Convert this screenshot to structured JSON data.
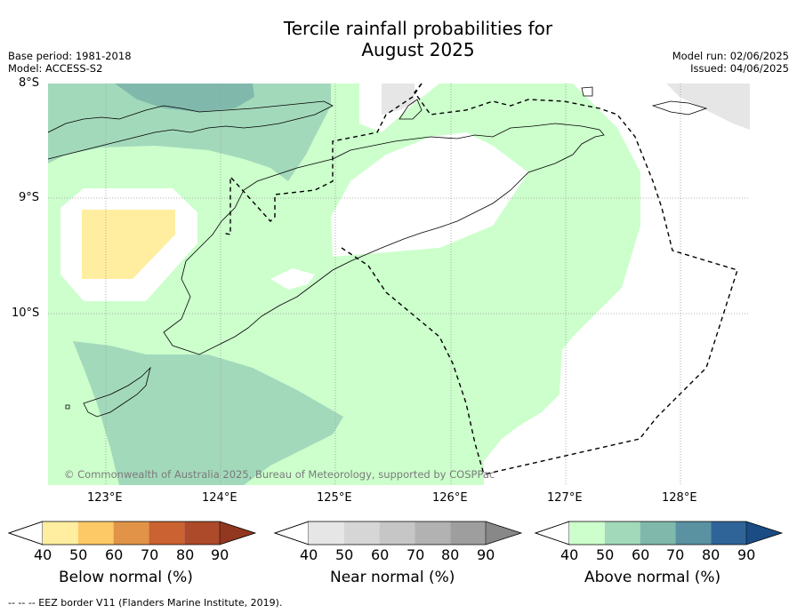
{
  "title_line1": "Tercile rainfall probabilities for",
  "title_line2": "August 2025",
  "meta_left": {
    "base_period": "Base period: 1981-2018",
    "model": "Model: ACCESS-S2"
  },
  "meta_right": {
    "model_run": "Model run: 02/06/2025",
    "issued": "Issued: 04/06/2025"
  },
  "latitude_ticks": [
    "8°S",
    "9°S",
    "10°S"
  ],
  "longitude_ticks": [
    "123°E",
    "124°E",
    "125°E",
    "126°E",
    "127°E",
    "128°E"
  ],
  "copyright": "© Commonwealth of Australia 2025, Bureau of Meteorology, supported by COSPPac",
  "colorbars": {
    "below": {
      "label": "Below normal (%)",
      "ticks": [
        "40",
        "50",
        "60",
        "70",
        "80",
        "90"
      ],
      "colors": [
        "#ffeea0",
        "#fdc966",
        "#e19447",
        "#cb6231",
        "#ad4a29",
        "#923820"
      ]
    },
    "near": {
      "label": "Near normal (%)",
      "ticks": [
        "40",
        "50",
        "60",
        "70",
        "80",
        "90"
      ],
      "colors": [
        "#e6e6e6",
        "#d6d6d6",
        "#c6c6c6",
        "#b2b2b2",
        "#9e9e9e",
        "#888888"
      ]
    },
    "above": {
      "label": "Above normal (%)",
      "ticks": [
        "40",
        "50",
        "60",
        "70",
        "80",
        "90"
      ],
      "colors": [
        "#ccffcc",
        "#a3d9bb",
        "#80b9ac",
        "#5a92a2",
        "#2f6499",
        "#1b4c84"
      ]
    }
  },
  "footer": "--  --  -- EEZ border V11 (Flanders Marine Institute, 2019)."
}
